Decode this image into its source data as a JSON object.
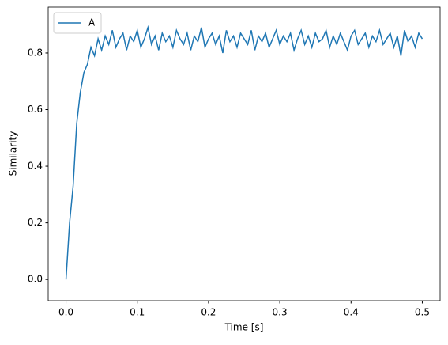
{
  "chart_data": {
    "type": "line",
    "xlabel": "Time [s]",
    "ylabel": "Similarity",
    "x": [
      0,
      0.005,
      0.01,
      0.015,
      0.02,
      0.025,
      0.03,
      0.035,
      0.04,
      0.045,
      0.05,
      0.055,
      0.06,
      0.065,
      0.07,
      0.075,
      0.08,
      0.085,
      0.09,
      0.095,
      0.1,
      0.105,
      0.11,
      0.115,
      0.12,
      0.125,
      0.13,
      0.135,
      0.14,
      0.145,
      0.15,
      0.155,
      0.16,
      0.165,
      0.17,
      0.175,
      0.18,
      0.185,
      0.19,
      0.195,
      0.2,
      0.205,
      0.21,
      0.215,
      0.22,
      0.225,
      0.23,
      0.235,
      0.24,
      0.245,
      0.25,
      0.255,
      0.26,
      0.265,
      0.27,
      0.275,
      0.28,
      0.285,
      0.29,
      0.295,
      0.3,
      0.305,
      0.31,
      0.315,
      0.32,
      0.325,
      0.33,
      0.335,
      0.34,
      0.345,
      0.35,
      0.355,
      0.36,
      0.365,
      0.37,
      0.375,
      0.38,
      0.385,
      0.39,
      0.395,
      0.4,
      0.405,
      0.41,
      0.415,
      0.42,
      0.425,
      0.43,
      0.435,
      0.44,
      0.445,
      0.45,
      0.455,
      0.46,
      0.465,
      0.47,
      0.475,
      0.48,
      0.485,
      0.49,
      0.495,
      0.5
    ],
    "series": [
      {
        "name": "A",
        "color": "#1f77b4",
        "values": [
          0,
          0.2,
          0.33,
          0.55,
          0.66,
          0.73,
          0.76,
          0.82,
          0.79,
          0.85,
          0.81,
          0.86,
          0.83,
          0.88,
          0.82,
          0.85,
          0.87,
          0.81,
          0.86,
          0.84,
          0.88,
          0.82,
          0.85,
          0.89,
          0.83,
          0.86,
          0.81,
          0.87,
          0.84,
          0.86,
          0.82,
          0.88,
          0.85,
          0.83,
          0.87,
          0.81,
          0.86,
          0.84,
          0.89,
          0.82,
          0.85,
          0.87,
          0.83,
          0.86,
          0.8,
          0.88,
          0.84,
          0.86,
          0.82,
          0.87,
          0.85,
          0.83,
          0.88,
          0.81,
          0.86,
          0.84,
          0.87,
          0.82,
          0.85,
          0.88,
          0.83,
          0.86,
          0.84,
          0.87,
          0.81,
          0.85,
          0.88,
          0.83,
          0.86,
          0.82,
          0.87,
          0.84,
          0.85,
          0.88,
          0.82,
          0.86,
          0.83,
          0.87,
          0.84,
          0.81,
          0.86,
          0.88,
          0.83,
          0.85,
          0.87,
          0.82,
          0.86,
          0.84,
          0.88,
          0.83,
          0.85,
          0.87,
          0.82,
          0.86,
          0.79,
          0.88,
          0.84,
          0.86,
          0.82,
          0.87,
          0.85
        ]
      }
    ],
    "xlim": [
      -0.025,
      0.525
    ],
    "ylim": [
      -0.075,
      0.962
    ],
    "xticks": [
      {
        "value": 0,
        "label": "0.0"
      },
      0.1,
      0.2,
      0.3,
      0.4,
      0.5
    ],
    "yticks": [
      {
        "value": 0,
        "label": "0.0"
      },
      0.2,
      0.4,
      0.6,
      0.8
    ],
    "legend": "upper left"
  }
}
